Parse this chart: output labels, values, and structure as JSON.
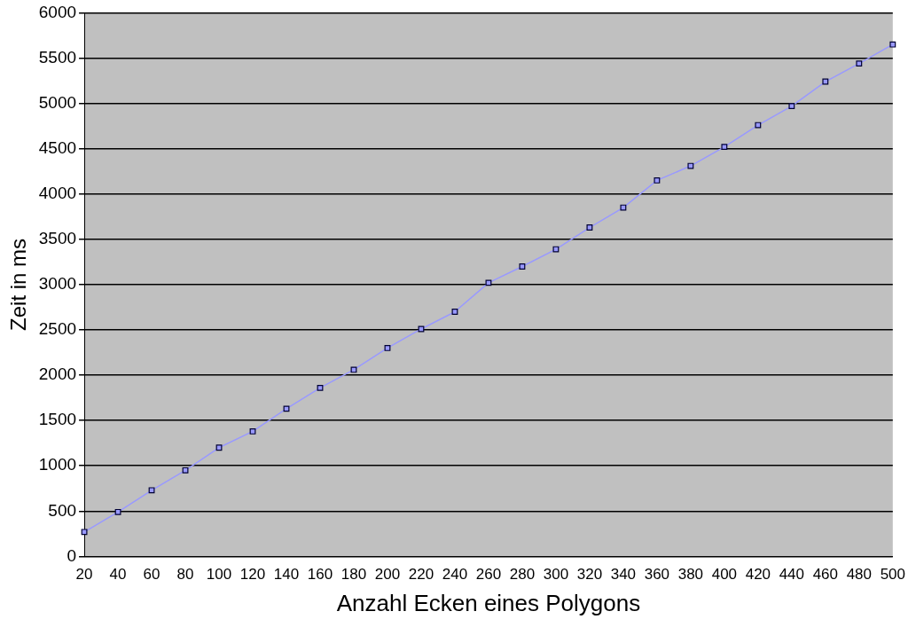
{
  "chart_data": {
    "type": "line",
    "xlabel": "Anzahl Ecken eines Polygons",
    "ylabel": "Zeit in ms",
    "categories": [
      "20",
      "40",
      "60",
      "80",
      "100",
      "120",
      "140",
      "160",
      "180",
      "200",
      "220",
      "240",
      "260",
      "280",
      "300",
      "320",
      "340",
      "360",
      "380",
      "400",
      "420",
      "440",
      "460",
      "480",
      "500"
    ],
    "series": [
      {
        "color": "#9999ff",
        "values": [
          270,
          490,
          730,
          950,
          1200,
          1380,
          1630,
          1860,
          2060,
          2300,
          2510,
          2700,
          3020,
          3200,
          3390,
          3630,
          3850,
          4150,
          4310,
          4520,
          4760,
          4970,
          5240,
          5440,
          5650
        ]
      }
    ],
    "ylim": [
      0,
      6000
    ],
    "yticks": [
      0,
      500,
      1000,
      1500,
      2000,
      2500,
      3000,
      3500,
      4000,
      4500,
      5000,
      5500,
      6000
    ],
    "grid": "y",
    "legend": false,
    "marker": "square",
    "line_style": "solid"
  }
}
